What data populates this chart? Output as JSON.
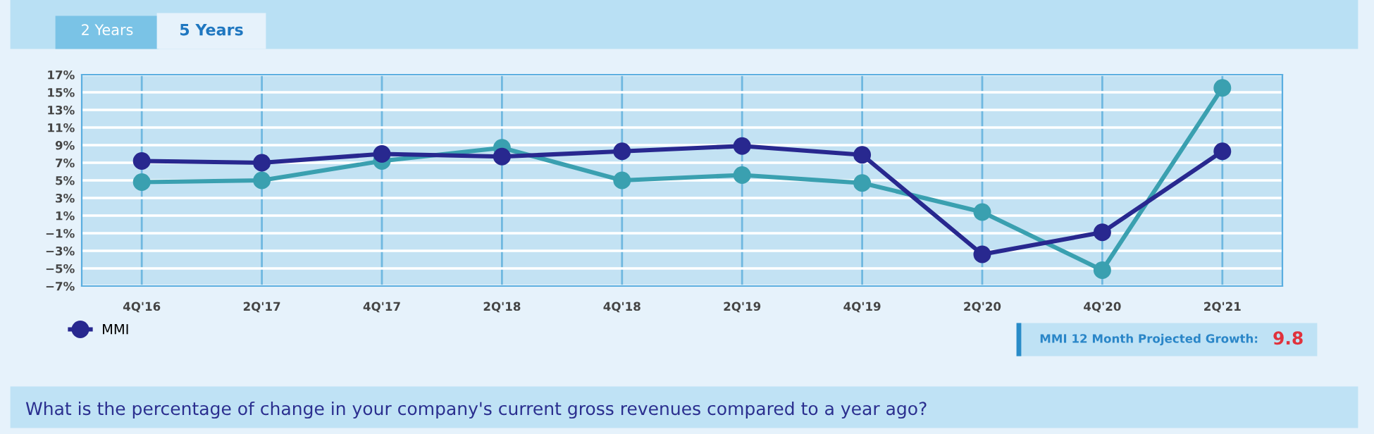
{
  "chart_data": {
    "type": "line",
    "categories": [
      "4Q'16",
      "2Q'17",
      "4Q'17",
      "2Q'18",
      "4Q'18",
      "2Q'19",
      "4Q'19",
      "2Q'20",
      "4Q'20",
      "2Q'21"
    ],
    "series": [
      {
        "name": "MMI",
        "color": "#28288f",
        "values": [
          7.2,
          7.0,
          8.0,
          7.7,
          8.3,
          8.9,
          7.9,
          -3.4,
          -0.9,
          8.3
        ]
      },
      {
        "color": "#3aa0b0",
        "values": [
          4.8,
          5.0,
          7.2,
          8.7,
          5.0,
          5.6,
          4.7,
          1.4,
          -5.2,
          15.5
        ]
      }
    ],
    "ylim": [
      -7,
      17
    ],
    "yticks": [
      {
        "value": -7,
        "label": "−7%"
      },
      {
        "value": -5,
        "label": "−5%"
      },
      {
        "value": -3,
        "label": "−3%"
      },
      {
        "value": -1,
        "label": "−1%"
      },
      {
        "value": 1,
        "label": "1%"
      },
      {
        "value": 3,
        "label": "3%"
      },
      {
        "value": 5,
        "label": "5%"
      },
      {
        "value": 7,
        "label": "7%"
      },
      {
        "value": 9,
        "label": "9%"
      },
      {
        "value": 11,
        "label": "11%"
      },
      {
        "value": 13,
        "label": "13%"
      },
      {
        "value": 15,
        "label": "15%"
      },
      {
        "value": 17,
        "label": "17%"
      }
    ],
    "grid": true,
    "legend": "bottom left",
    "marker": "circle",
    "line_style": "solid",
    "annotations": [
      "2 Years",
      "5 Years",
      "MMI 12 Month Projected Growth:",
      "9.8",
      "What is the percentage of change in your company's current gross revenues compared to a year ago?"
    ]
  }
}
